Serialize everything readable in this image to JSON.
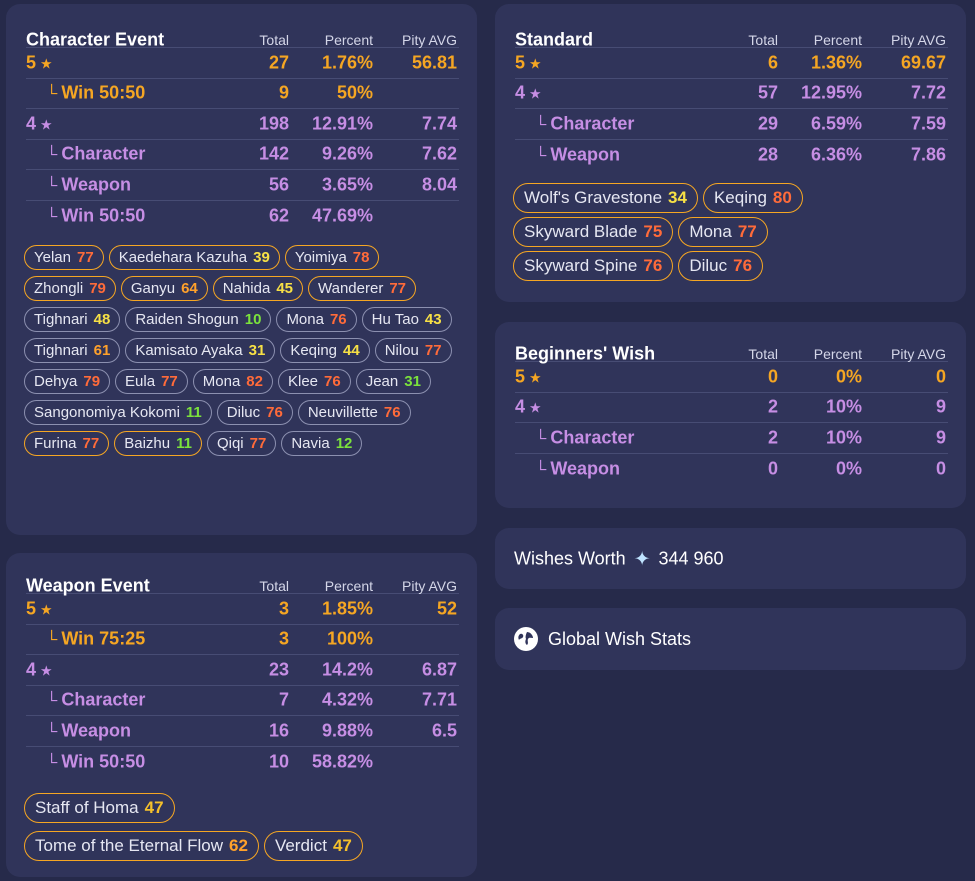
{
  "headers": {
    "total": "Total",
    "percent": "Percent",
    "pity": "Pity AVG"
  },
  "character_event": {
    "title": "Character Event",
    "rows": [
      {
        "label": "5",
        "star": "★",
        "total": "27",
        "percent": "1.76%",
        "pity": "56.81"
      },
      {
        "label": "Win 50:50",
        "branch": "└",
        "total": "9",
        "percent": "50%",
        "pity": ""
      },
      {
        "label": "4",
        "star": "★",
        "total": "198",
        "percent": "12.91%",
        "pity": "7.74"
      },
      {
        "label": "Character",
        "branch": "└",
        "total": "142",
        "percent": "9.26%",
        "pity": "7.62"
      },
      {
        "label": "Weapon",
        "branch": "└",
        "total": "56",
        "percent": "3.65%",
        "pity": "8.04"
      },
      {
        "label": "Win 50:50",
        "branch": "└",
        "total": "62",
        "percent": "47.69%",
        "pity": ""
      }
    ],
    "chips": [
      {
        "name": "Yelan",
        "pity": "77"
      },
      {
        "name": "Kaedehara Kazuha",
        "pity": "39"
      },
      {
        "name": "Yoimiya",
        "pity": "78"
      },
      {
        "name": "Zhongli",
        "pity": "79"
      },
      {
        "name": "Ganyu",
        "pity": "64"
      },
      {
        "name": "Nahida",
        "pity": "45"
      },
      {
        "name": "Wanderer",
        "pity": "77"
      },
      {
        "name": "Tighnari",
        "pity": "48"
      },
      {
        "name": "Raiden Shogun",
        "pity": "10"
      },
      {
        "name": "Mona",
        "pity": "76"
      },
      {
        "name": "Hu Tao",
        "pity": "43"
      },
      {
        "name": "Tighnari",
        "pity": "61"
      },
      {
        "name": "Kamisato Ayaka",
        "pity": "31"
      },
      {
        "name": "Keqing",
        "pity": "44"
      },
      {
        "name": "Nilou",
        "pity": "77"
      },
      {
        "name": "Dehya",
        "pity": "79"
      },
      {
        "name": "Eula",
        "pity": "77"
      },
      {
        "name": "Mona",
        "pity": "82"
      },
      {
        "name": "Klee",
        "pity": "76"
      },
      {
        "name": "Jean",
        "pity": "31"
      },
      {
        "name": "Sangonomiya Kokomi",
        "pity": "11"
      },
      {
        "name": "Diluc",
        "pity": "76"
      },
      {
        "name": "Neuvillette",
        "pity": "76"
      },
      {
        "name": "Furina",
        "pity": "77"
      },
      {
        "name": "Baizhu",
        "pity": "11"
      },
      {
        "name": "Qiqi",
        "pity": "77"
      },
      {
        "name": "Navia",
        "pity": "12"
      }
    ]
  },
  "weapon_event": {
    "title": "Weapon Event",
    "rows": [
      {
        "label": "5",
        "star": "★",
        "total": "3",
        "percent": "1.85%",
        "pity": "52"
      },
      {
        "label": "Win 75:25",
        "branch": "└",
        "total": "3",
        "percent": "100%",
        "pity": ""
      },
      {
        "label": "4",
        "star": "★",
        "total": "23",
        "percent": "14.2%",
        "pity": "6.87"
      },
      {
        "label": "Character",
        "branch": "└",
        "total": "7",
        "percent": "4.32%",
        "pity": "7.71"
      },
      {
        "label": "Weapon",
        "branch": "└",
        "total": "16",
        "percent": "9.88%",
        "pity": "6.5"
      },
      {
        "label": "Win 50:50",
        "branch": "└",
        "total": "10",
        "percent": "58.82%",
        "pity": ""
      }
    ],
    "chips": [
      {
        "name": "Staff of Homa",
        "pity": "47"
      },
      {
        "name": "Tome of the Eternal Flow",
        "pity": "62"
      },
      {
        "name": "Verdict",
        "pity": "47"
      }
    ]
  },
  "standard": {
    "title": "Standard",
    "rows": [
      {
        "label": "5",
        "star": "★",
        "total": "6",
        "percent": "1.36%",
        "pity": "69.67"
      },
      {
        "label": "4",
        "star": "★",
        "total": "57",
        "percent": "12.95%",
        "pity": "7.72"
      },
      {
        "label": "Character",
        "branch": "└",
        "total": "29",
        "percent": "6.59%",
        "pity": "7.59"
      },
      {
        "label": "Weapon",
        "branch": "└",
        "total": "28",
        "percent": "6.36%",
        "pity": "7.86"
      }
    ],
    "chips": [
      {
        "name": "Wolf's Gravestone",
        "pity": "34"
      },
      {
        "name": "Keqing",
        "pity": "80"
      },
      {
        "name": "Skyward Blade",
        "pity": "75"
      },
      {
        "name": "Mona",
        "pity": "77"
      },
      {
        "name": "Skyward Spine",
        "pity": "76"
      },
      {
        "name": "Diluc",
        "pity": "76"
      }
    ]
  },
  "beginners": {
    "title": "Beginners' Wish",
    "rows": [
      {
        "label": "5",
        "star": "★",
        "total": "0",
        "percent": "0%",
        "pity": "0"
      },
      {
        "label": "4",
        "star": "★",
        "total": "2",
        "percent": "10%",
        "pity": "9"
      },
      {
        "label": "Character",
        "branch": "└",
        "total": "2",
        "percent": "10%",
        "pity": "9"
      },
      {
        "label": "Weapon",
        "branch": "└",
        "total": "0",
        "percent": "0%",
        "pity": "0"
      }
    ]
  },
  "worth": {
    "label": "Wishes Worth",
    "icon": "primogem-icon",
    "value": "344 960"
  },
  "global": {
    "label": "Global Wish Stats",
    "icon": "globe-icon"
  },
  "colors": {
    "gold": "#f5a623",
    "purple": "#c68ee4",
    "red": "#ff6b3a",
    "yellow": "#f7e045",
    "green": "#7be23c"
  }
}
